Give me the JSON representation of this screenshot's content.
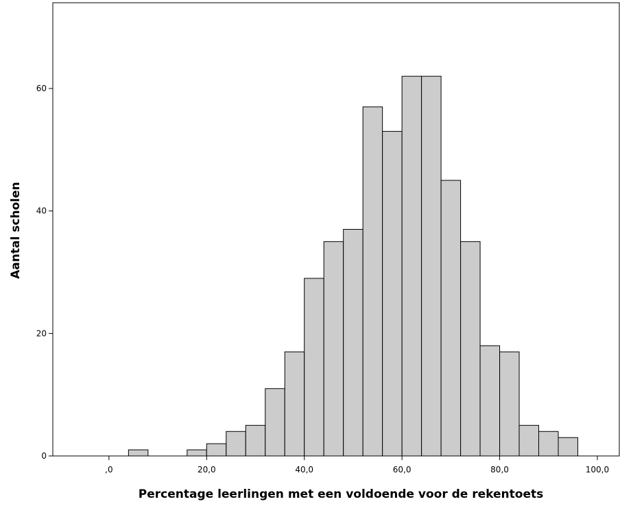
{
  "chart_data": {
    "type": "bar",
    "subtype": "histogram",
    "xlabel": "Percentage leerlingen met een voldoende voor de rekentoets",
    "ylabel": "Aantal scholen",
    "x_ticks": [
      ",0",
      "20,0",
      "40,0",
      "60,0",
      "80,0",
      "100,0"
    ],
    "x_tick_values": [
      0,
      20,
      40,
      60,
      80,
      100
    ],
    "y_ticks": [
      "0",
      "20",
      "40",
      "60"
    ],
    "y_tick_values": [
      0,
      20,
      40,
      60
    ],
    "xlim": [
      -11.5,
      104.5
    ],
    "ylim": [
      0,
      74
    ],
    "bin_width": 4,
    "bin_starts": [
      4,
      16,
      20,
      24,
      28,
      32,
      36,
      40,
      44,
      48,
      52,
      56,
      60,
      64,
      68,
      72,
      76,
      80,
      84,
      88,
      92
    ],
    "values": [
      1,
      1,
      2,
      4,
      5,
      11,
      17,
      29,
      35,
      37,
      57,
      53,
      62,
      62,
      45,
      35,
      18,
      17,
      5,
      4,
      3
    ],
    "grid": false,
    "bar_color": "#cccccc",
    "bar_edge_color": "#000000"
  }
}
